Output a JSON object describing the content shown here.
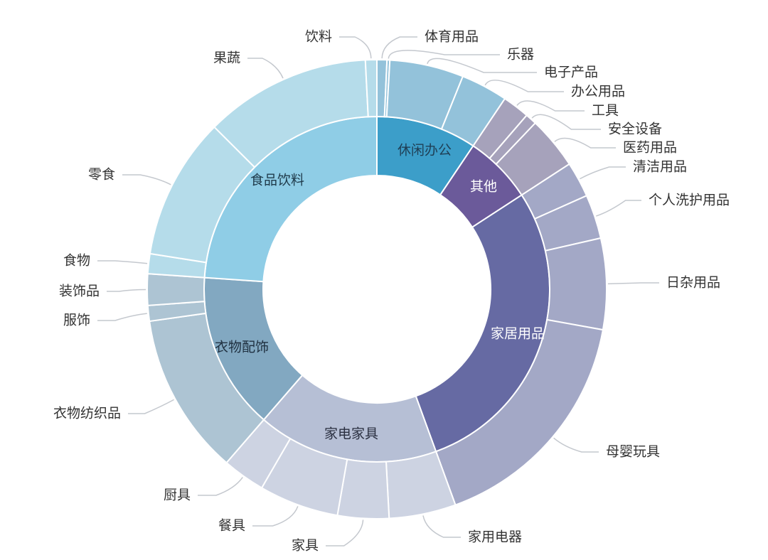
{
  "chart_data": {
    "type": "sunburst",
    "title": "",
    "unit": "share of total (%) — estimated from arc angles",
    "start": "top, clockwise",
    "inner": [
      {
        "name": "休闲办公",
        "value": 9.4,
        "color": "#3c9ec9",
        "text_color": "#1f3f55",
        "outer_color": "#93c2da",
        "children": [
          {
            "name": "体育用品",
            "value": 0.7
          },
          {
            "name": "乐器",
            "value": 0.2
          },
          {
            "name": "电子产品",
            "value": 5.2
          },
          {
            "name": "办公用品",
            "value": 3.3
          }
        ]
      },
      {
        "name": "其他",
        "value": 6.4,
        "color": "#6b5a9a",
        "text_color": "#ffffff",
        "outer_color": "#a6a2bb",
        "children": [
          {
            "name": "工具",
            "value": 1.9
          },
          {
            "name": "安全设备",
            "value": 0.8
          },
          {
            "name": "医药用品",
            "value": 3.7
          }
        ]
      },
      {
        "name": "家居用品",
        "value": 28.6,
        "color": "#666aa3",
        "text_color": "#ffffff",
        "outer_color": "#a3a8c6",
        "children": [
          {
            "name": "清洁用品",
            "value": 2.5
          },
          {
            "name": "个人洗护用品",
            "value": 3.1
          },
          {
            "name": "日杂用品",
            "value": 6.4
          },
          {
            "name": "母婴玩具",
            "value": 16.6
          }
        ]
      },
      {
        "name": "家电家具",
        "value": 16.9,
        "color": "#b6bfd5",
        "text_color": "#2a2f40",
        "outer_color": "#cdd3e2",
        "children": [
          {
            "name": "家用电器",
            "value": 4.7
          },
          {
            "name": "家具",
            "value": 3.6
          },
          {
            "name": "餐具",
            "value": 5.6
          },
          {
            "name": "厨具",
            "value": 3.0
          }
        ]
      },
      {
        "name": "衣物配饰",
        "value": 14.7,
        "color": "#82a8c1",
        "text_color": "#1f3040",
        "outer_color": "#adc4d3",
        "children": [
          {
            "name": "衣物纺织品",
            "value": 11.4
          },
          {
            "name": "服饰",
            "value": 1.1
          },
          {
            "name": "装饰品",
            "value": 2.2
          }
        ]
      },
      {
        "name": "食品饮料",
        "value": 23.9,
        "color": "#8fcde6",
        "text_color": "#1f3a4a",
        "outer_color": "#b5dcea",
        "children": [
          {
            "name": "食物",
            "value": 1.4
          },
          {
            "name": "零食",
            "value": 10.0
          },
          {
            "name": "果蔬",
            "value": 11.7
          },
          {
            "name": "饮料",
            "value": 0.8
          }
        ]
      }
    ]
  }
}
